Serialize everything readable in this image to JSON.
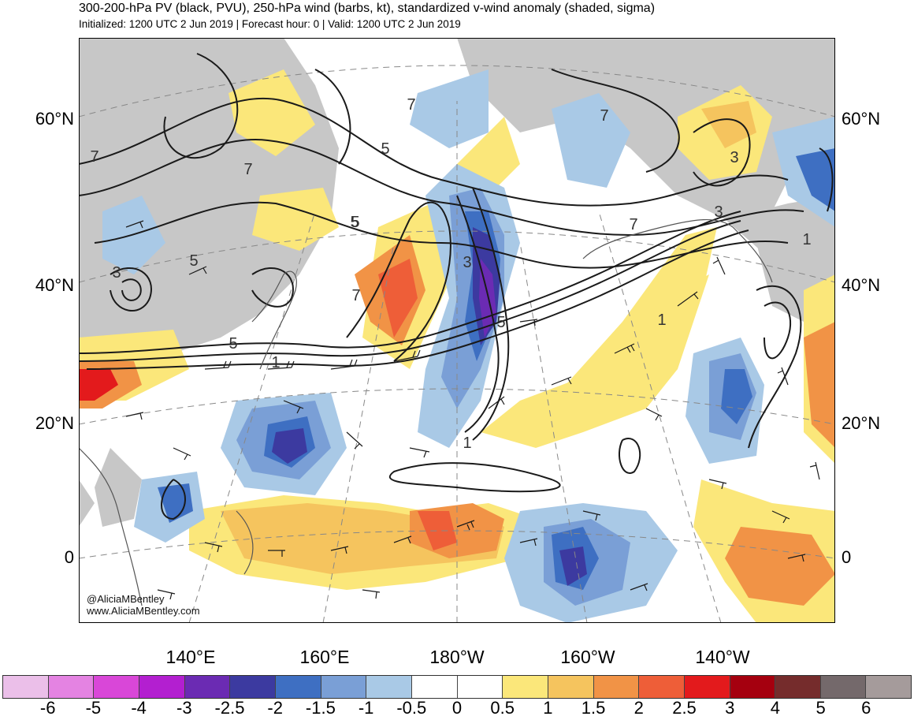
{
  "header": {
    "title": "300-200-hPa PV (black, PVU), 250-hPa wind (barbs, kt), standardized v-wind anomaly (shaded, sigma)",
    "subtitle": "Initialized: 1200 UTC 2 Jun 2019 | Forecast hour: 0 | Valid: 1200 UTC 2 Jun 2019"
  },
  "map": {
    "lat_labels": [
      "60°N",
      "40°N",
      "20°N",
      "0"
    ],
    "lon_labels": [
      "140°E",
      "160°E",
      "180°W",
      "160°W",
      "140°W"
    ],
    "contour_labels": [
      "7",
      "7",
      "5",
      "3",
      "5",
      "7",
      "5",
      "1",
      "5",
      "3",
      "5",
      "7",
      "3",
      "1",
      "3",
      "1",
      "1",
      "7",
      "5",
      "7"
    ]
  },
  "credit": {
    "handle": "@AliciaMBentley",
    "website": "www.AliciaMBentley.com"
  },
  "colorbar": {
    "colors": [
      "#ebbfe9",
      "#e483e2",
      "#d947d8",
      "#b31fd0",
      "#6b2bb3",
      "#3c3aa0",
      "#3e6fc2",
      "#7a9fd6",
      "#a9c9e6",
      "#ffffff",
      "#ffffff",
      "#fbe77a",
      "#f5c45e",
      "#f19346",
      "#ee5e38",
      "#e31a1c",
      "#a5000f",
      "#752c2c",
      "#74696b",
      "#a59b9b"
    ],
    "labels": [
      "-6",
      "-5",
      "-4",
      "-3",
      "-2.5",
      "-2",
      "-1.5",
      "-1",
      "-0.5",
      "0",
      "0.5",
      "1",
      "1.5",
      "2",
      "2.5",
      "3",
      "4",
      "5",
      "6"
    ]
  }
}
